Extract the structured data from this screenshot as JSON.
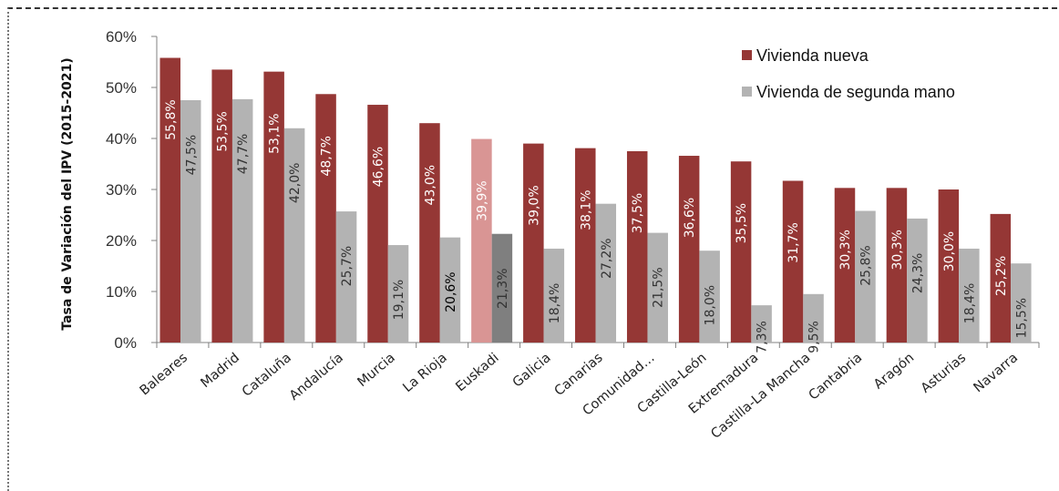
{
  "chart_data": {
    "type": "bar",
    "ylabel": "Tasa de Variación del IPV (2015-2021)",
    "ylim": [
      0,
      60
    ],
    "yticks": [
      "0%",
      "10%",
      "20%",
      "30%",
      "40%",
      "50%",
      "60%"
    ],
    "grid": false,
    "legend_position": "top-right",
    "categories": [
      "Baleares",
      "Madrid",
      "Cataluña",
      "Andalucía",
      "Murcia",
      "La Rioja",
      "Euskadi",
      "Galicia",
      "Canarias",
      "Comunidad…",
      "Castilla-León",
      "Extremadura",
      "Castilla-La Mancha",
      "Cantabria",
      "Aragón",
      "Asturias",
      "Navarra"
    ],
    "highlight_category": "Euskadi",
    "series": [
      {
        "name": "Vivienda nueva",
        "color": "#953735",
        "highlight_color": "#D99594",
        "values": [
          55.8,
          53.5,
          53.1,
          48.7,
          46.6,
          43.0,
          39.9,
          39.0,
          38.1,
          37.5,
          36.6,
          35.5,
          31.7,
          30.3,
          30.3,
          30.0,
          25.2
        ],
        "labels": [
          "55,8%",
          "53,5%",
          "53,1%",
          "48,7%",
          "46,6%",
          "43,0%",
          "39,9%",
          "39,0%",
          "38,1%",
          "37,5%",
          "36,6%",
          "35,5%",
          "31,7%",
          "30,3%",
          "30,3%",
          "30,0%",
          "25,2%"
        ]
      },
      {
        "name": "Vivienda de segunda mano",
        "color": "#B3B3B3",
        "highlight_color": "#7F7F7F",
        "values": [
          47.5,
          47.7,
          42.0,
          25.7,
          19.1,
          20.6,
          21.3,
          18.4,
          27.2,
          21.5,
          18.0,
          7.3,
          9.5,
          25.8,
          24.3,
          18.4,
          15.5
        ],
        "labels": [
          "47,5%",
          "47,7%",
          "42,0%",
          "25,7%",
          "19,1%",
          "20,6%",
          "21,3%",
          "18,4%",
          "27,2%",
          "21,5%",
          "18,0%",
          "7,3%",
          "9,5%",
          "25,8%",
          "24,3%",
          "18,4%",
          "15,5%"
        ]
      }
    ]
  }
}
